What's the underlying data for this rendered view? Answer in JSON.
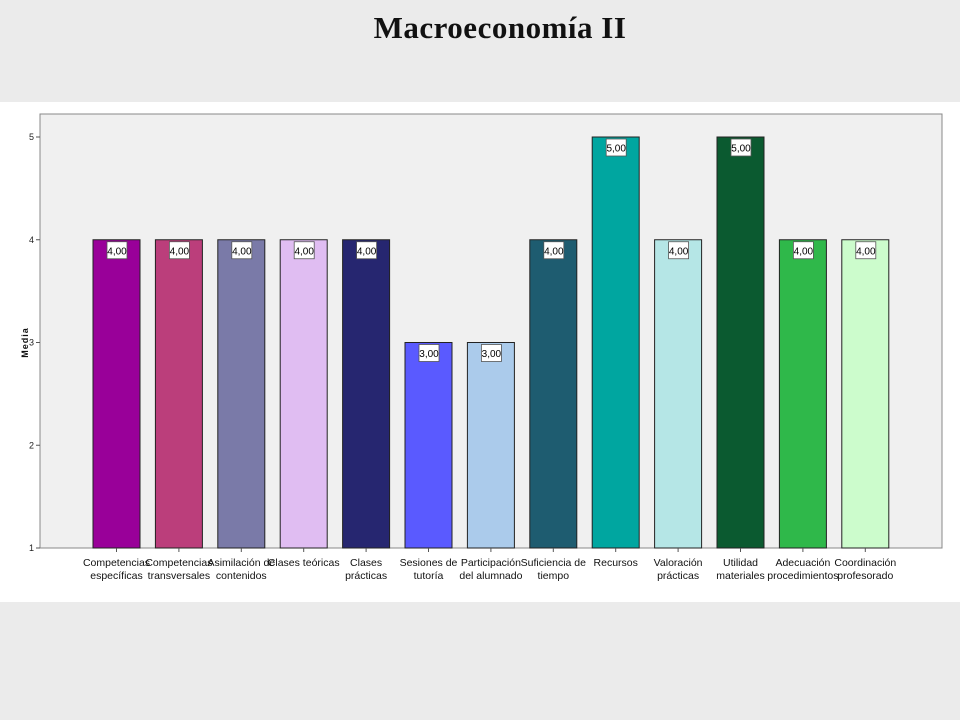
{
  "page": {
    "title": "Macroeconomía II"
  },
  "chart_data": {
    "type": "bar",
    "ylabel": "Media",
    "xlabel": "",
    "ylim": [
      1,
      5
    ],
    "yticks": [
      "1",
      "2",
      "3",
      "4",
      "5"
    ],
    "grid": false,
    "categories": [
      [
        "Competencias",
        "específicas"
      ],
      [
        "Competencias",
        "transversales"
      ],
      [
        "Asimilación de",
        "contenidos"
      ],
      [
        "Clases teóricas"
      ],
      [
        "Clases",
        "prácticas"
      ],
      [
        "Sesiones de",
        "tutoría"
      ],
      [
        "Participación",
        "del alumnado"
      ],
      [
        "Suficiencia de",
        "tiempo"
      ],
      [
        "Recursos"
      ],
      [
        "Valoración",
        "prácticas"
      ],
      [
        "Utilidad",
        "materiales"
      ],
      [
        "Adecuación",
        "procedimientos"
      ],
      [
        "Coordinación",
        "profesorado"
      ]
    ],
    "values": [
      4,
      4,
      4,
      4,
      4,
      3,
      3,
      4,
      5,
      4,
      5,
      4,
      4
    ],
    "value_labels": [
      "4,00",
      "4,00",
      "4,00",
      "4,00",
      "4,00",
      "3,00",
      "3,00",
      "4,00",
      "5,00",
      "4,00",
      "5,00",
      "4,00",
      "4,00"
    ],
    "colors": [
      "#990099",
      "#bb3e7b",
      "#7a7aa8",
      "#e0bdf2",
      "#262670",
      "#5a5aff",
      "#abcbeb",
      "#1e5c70",
      "#00a6a0",
      "#b5e6e6",
      "#0b5a30",
      "#2fb84a",
      "#ccfccc"
    ]
  }
}
